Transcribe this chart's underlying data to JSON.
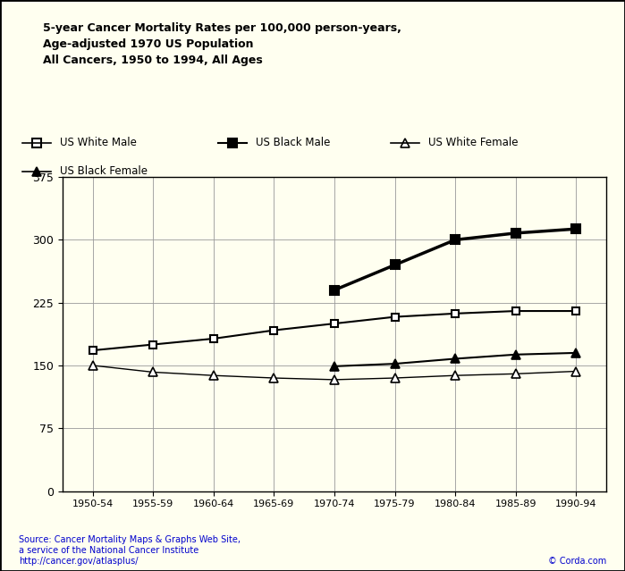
{
  "title_lines": [
    "5-year Cancer Mortality Rates per 100,000 person-years,",
    "Age-adjusted 1970 US Population",
    "All Cancers, 1950 to 1994, All Ages"
  ],
  "categories": [
    "1950-54",
    "1955-59",
    "1960-64",
    "1965-69",
    "1970-74",
    "1975-79",
    "1980-84",
    "1985-89",
    "1990-94"
  ],
  "us_white_male": [
    168,
    175,
    182,
    192,
    200,
    208,
    212,
    215,
    215
  ],
  "us_black_male": [
    null,
    null,
    null,
    null,
    240,
    270,
    300,
    308,
    313
  ],
  "us_white_female": [
    150,
    142,
    138,
    135,
    133,
    135,
    138,
    140,
    143
  ],
  "us_black_female": [
    null,
    null,
    null,
    null,
    149,
    152,
    158,
    163,
    165
  ],
  "ylim": [
    0,
    375
  ],
  "yticks": [
    0,
    75,
    150,
    225,
    300,
    375
  ],
  "bg_color": "#FFFFF0",
  "plot_bg_color": "#FFFFF0",
  "line_color": "#000000",
  "grid_color": "#999999",
  "source_text": "Source: Cancer Mortality Maps & Graphs Web Site,\na service of the National Cancer Institute\nhttp://cancer.gov/atlasplus/",
  "copyright_text": "© Corda.com",
  "legend_entries": [
    "US White Male",
    "US Black Male",
    "US White Female",
    "US Black Female"
  ]
}
